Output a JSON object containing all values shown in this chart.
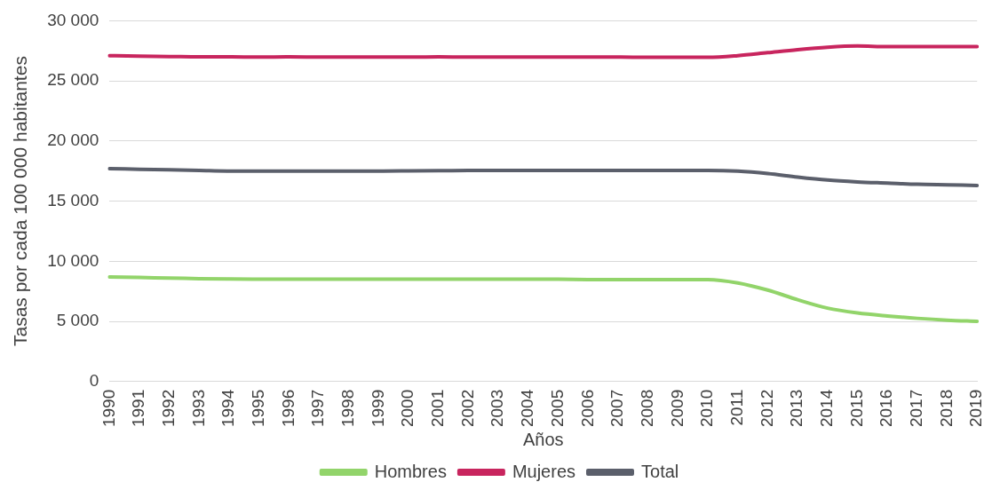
{
  "chart_data": {
    "type": "line",
    "xlabel": "Años",
    "ylabel": "Tasas por cada 100 000 habitantes",
    "categories": [
      "1990",
      "1991",
      "1992",
      "1993",
      "1994",
      "1995",
      "1996",
      "1997",
      "1998",
      "1999",
      "2000",
      "2001",
      "2002",
      "2003",
      "2004",
      "2005",
      "2006",
      "2007",
      "2008",
      "2009",
      "2010",
      "2011",
      "2012",
      "2013",
      "2014",
      "2015",
      "2016",
      "2017",
      "2018",
      "2019"
    ],
    "series": [
      {
        "name": "Hombres",
        "color": "#92d46a",
        "values": [
          8700,
          8650,
          8600,
          8550,
          8520,
          8500,
          8500,
          8500,
          8500,
          8500,
          8500,
          8500,
          8500,
          8500,
          8500,
          8500,
          8480,
          8480,
          8480,
          8480,
          8480,
          8200,
          7600,
          6800,
          6100,
          5700,
          5450,
          5250,
          5100,
          5000
        ]
      },
      {
        "name": "Mujeres",
        "color": "#c8255e",
        "values": [
          27100,
          27050,
          27030,
          27000,
          27000,
          26980,
          27000,
          26980,
          26980,
          26980,
          26980,
          27000,
          26980,
          26980,
          26980,
          26980,
          26980,
          26980,
          26960,
          26960,
          26960,
          27100,
          27350,
          27600,
          27800,
          27900,
          27850,
          27850,
          27850,
          27850
        ]
      },
      {
        "name": "Total",
        "color": "#5b5f6b",
        "values": [
          17700,
          17650,
          17600,
          17550,
          17500,
          17500,
          17500,
          17500,
          17500,
          17500,
          17520,
          17530,
          17550,
          17550,
          17550,
          17560,
          17560,
          17560,
          17560,
          17560,
          17560,
          17500,
          17300,
          17000,
          16750,
          16600,
          16500,
          16400,
          16350,
          16300
        ]
      }
    ],
    "ylim": [
      0,
      30000
    ],
    "yticks": [
      0,
      5000,
      10000,
      15000,
      20000,
      25000,
      30000
    ],
    "grid": "y",
    "legend": "bottom",
    "marker": "none",
    "line_style": "solid"
  }
}
